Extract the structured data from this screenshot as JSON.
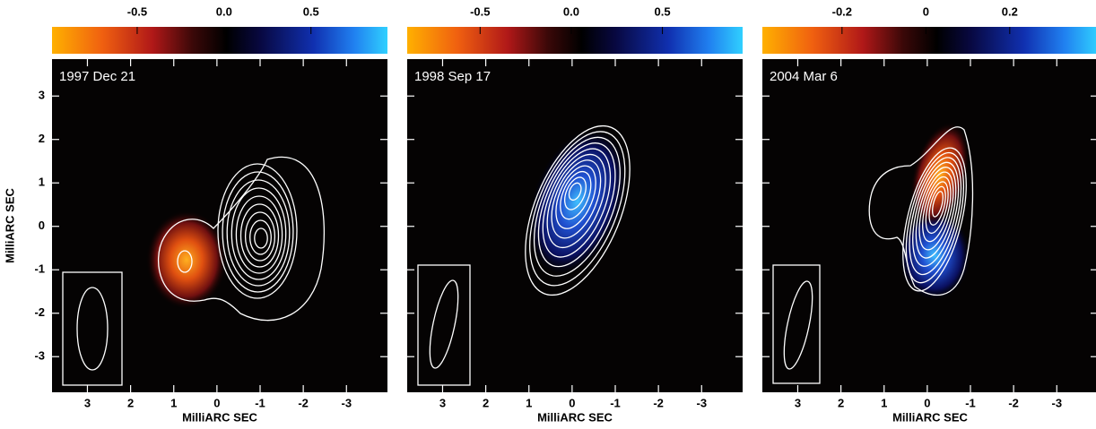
{
  "axis_label": "MilliARC SEC",
  "xlim": [
    3.82,
    -3.95
  ],
  "ylim": [
    -3.82,
    3.85
  ],
  "xticks": [
    3,
    2,
    1,
    0,
    -1,
    -2,
    -3
  ],
  "yticks": [
    3,
    2,
    1,
    0,
    -1,
    -2,
    -3
  ],
  "panels": [
    {
      "date": "1997 Dec 21",
      "colorbar": {
        "lim": [
          -0.99,
          0.94
        ],
        "ticks": [
          -0.5,
          {
            "value": 0,
            "label": "0.0"
          },
          0.5
        ]
      }
    },
    {
      "date": "1998 Sep 17",
      "colorbar": {
        "lim": [
          -0.9,
          0.94
        ],
        "ticks": [
          -0.5,
          {
            "value": 0,
            "label": "0.0"
          },
          0.5
        ]
      }
    },
    {
      "date": "2004 Mar 6",
      "colorbar": {
        "lim": [
          -0.39,
          0.41
        ],
        "ticks": [
          -0.2,
          0,
          0.2
        ]
      }
    }
  ]
}
